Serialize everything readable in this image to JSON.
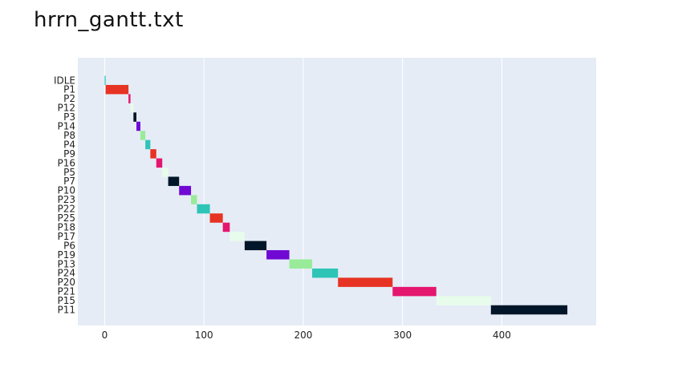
{
  "title": "hrrn_gantt.txt",
  "chart_data": {
    "type": "gantt",
    "title": "hrrn_gantt.txt",
    "xlim": [
      -27,
      495
    ],
    "xticks": [
      0,
      100,
      200,
      300,
      400
    ],
    "grid": true,
    "legend": "none",
    "plot_bg": "#e5ecf6",
    "tasks": [
      {
        "name": "IDLE",
        "start": 0,
        "end": 1,
        "color": "#2ec4b6"
      },
      {
        "name": "P1",
        "start": 1,
        "end": 24,
        "color": "#e63323"
      },
      {
        "name": "P2",
        "start": 24,
        "end": 26,
        "color": "#e4166e"
      },
      {
        "name": "P12",
        "start": 26,
        "end": 29,
        "color": "#e8fcec"
      },
      {
        "name": "P3",
        "start": 29,
        "end": 32,
        "color": "#011628"
      },
      {
        "name": "P14",
        "start": 32,
        "end": 36,
        "color": "#7009d4"
      },
      {
        "name": "P8",
        "start": 36,
        "end": 41,
        "color": "#99eb99"
      },
      {
        "name": "P4",
        "start": 41,
        "end": 46,
        "color": "#2ec4b6"
      },
      {
        "name": "P9",
        "start": 46,
        "end": 52,
        "color": "#e63323"
      },
      {
        "name": "P16",
        "start": 52,
        "end": 58,
        "color": "#e4166e"
      },
      {
        "name": "P5",
        "start": 58,
        "end": 64,
        "color": "#e8fcec"
      },
      {
        "name": "P7",
        "start": 64,
        "end": 75,
        "color": "#011628"
      },
      {
        "name": "P10",
        "start": 75,
        "end": 87,
        "color": "#7009d4"
      },
      {
        "name": "P23",
        "start": 87,
        "end": 93,
        "color": "#99eb99"
      },
      {
        "name": "P22",
        "start": 93,
        "end": 106,
        "color": "#2ec4b6"
      },
      {
        "name": "P25",
        "start": 106,
        "end": 119,
        "color": "#e63323"
      },
      {
        "name": "P18",
        "start": 119,
        "end": 126,
        "color": "#e4166e"
      },
      {
        "name": "P17",
        "start": 126,
        "end": 141,
        "color": "#e8fcec"
      },
      {
        "name": "P6",
        "start": 141,
        "end": 163,
        "color": "#011628"
      },
      {
        "name": "P19",
        "start": 163,
        "end": 186,
        "color": "#7009d4"
      },
      {
        "name": "P13",
        "start": 186,
        "end": 209,
        "color": "#99eb99"
      },
      {
        "name": "P24",
        "start": 209,
        "end": 235,
        "color": "#2ec4b6"
      },
      {
        "name": "P20",
        "start": 235,
        "end": 290,
        "color": "#e63323"
      },
      {
        "name": "P21",
        "start": 290,
        "end": 334,
        "color": "#e4166e"
      },
      {
        "name": "P15",
        "start": 334,
        "end": 389,
        "color": "#e8fcec"
      },
      {
        "name": "P11",
        "start": 389,
        "end": 466,
        "color": "#011628"
      }
    ]
  }
}
